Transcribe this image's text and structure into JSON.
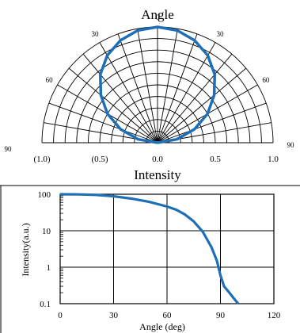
{
  "colors": {
    "curve": "#1f6fb8",
    "grid": "#000000",
    "text": "#000000",
    "background": "#ffffff"
  },
  "chart_data": [
    {
      "type": "polar",
      "title": "Angle",
      "xlabel": "Intensity",
      "angle_ticks": [
        {
          "angle": -90,
          "label": "90"
        },
        {
          "angle": -60,
          "label": "60"
        },
        {
          "angle": -30,
          "label": "30"
        },
        {
          "angle": 0,
          "label": "0"
        },
        {
          "angle": 30,
          "label": "30"
        },
        {
          "angle": 60,
          "label": "60"
        },
        {
          "angle": 90,
          "label": "90"
        }
      ],
      "radius_ticks": [
        {
          "value": -1.0,
          "label": "(1.0)"
        },
        {
          "value": -0.5,
          "label": "(0.5)"
        },
        {
          "value": 0.0,
          "label": "0.0"
        },
        {
          "value": 0.5,
          "label": "0.5"
        },
        {
          "value": 1.0,
          "label": "1.0"
        }
      ],
      "radial_grid_step_deg": 10,
      "ring_values": [
        0.1,
        0.2,
        0.3,
        0.4,
        0.5,
        0.6,
        0.7,
        0.8,
        0.9,
        1.0
      ],
      "rmax": 1.0,
      "series": [
        {
          "angle": [
            -90,
            -80,
            -70,
            -60,
            -50,
            -40,
            -30,
            -20,
            -10,
            0,
            10,
            20,
            30,
            40,
            50,
            60,
            70,
            80,
            90
          ],
          "r": [
            0.0,
            0.17,
            0.34,
            0.5,
            0.64,
            0.77,
            0.87,
            0.94,
            0.985,
            1.0,
            0.985,
            0.94,
            0.87,
            0.77,
            0.64,
            0.5,
            0.34,
            0.17,
            0.0
          ]
        }
      ]
    },
    {
      "type": "line",
      "xlabel": "Angle (deg)",
      "ylabel": "Intensity(a.u.)",
      "y_scale": "log",
      "xlim": [
        0,
        120
      ],
      "ylim": [
        0.1,
        100
      ],
      "x_ticks": [
        {
          "value": 0,
          "label": "0"
        },
        {
          "value": 30,
          "label": "30"
        },
        {
          "value": 60,
          "label": "60"
        },
        {
          "value": 90,
          "label": "90"
        },
        {
          "value": 120,
          "label": "120"
        }
      ],
      "y_ticks": [
        {
          "value": 0.1,
          "label": "0.1"
        },
        {
          "value": 1,
          "label": "1"
        },
        {
          "value": 10,
          "label": "10"
        },
        {
          "value": 100,
          "label": "100"
        }
      ],
      "grid": true,
      "series": [
        {
          "x": [
            0,
            10,
            20,
            30,
            40,
            50,
            60,
            65,
            70,
            75,
            80,
            85,
            88,
            90,
            92,
            95,
            98,
            100
          ],
          "y": [
            100,
            99,
            96,
            88,
            76,
            62,
            46,
            38,
            28,
            18,
            9.5,
            3.5,
            1.5,
            0.6,
            0.3,
            0.2,
            0.13,
            0.1
          ]
        }
      ]
    }
  ]
}
